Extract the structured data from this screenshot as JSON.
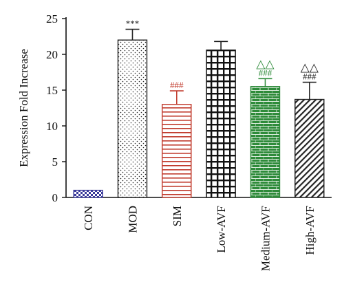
{
  "chart_data": {
    "type": "bar",
    "title": "",
    "xlabel": "",
    "ylabel": "Expression Fold Increase",
    "ylim": [
      0,
      25
    ],
    "yticks": [
      0,
      5,
      10,
      15,
      20,
      25
    ],
    "categories": [
      "CON",
      "MOD",
      "SIM",
      "Low-AVF",
      "Medium-AVF",
      "High-AVF"
    ],
    "values": [
      1.0,
      22.0,
      13.0,
      20.6,
      15.5,
      13.7
    ],
    "errors": [
      0.0,
      1.5,
      1.9,
      1.2,
      1.1,
      2.4
    ],
    "colors": [
      "#3a3a9a",
      "#222222",
      "#c0392b",
      "#111111",
      "#2e8b3a",
      "#222222"
    ],
    "patterns": [
      "checker-blue",
      "dots",
      "horizontal-lines",
      "grid",
      "bricks",
      "diagonal-lines"
    ],
    "annotations": [
      {
        "category": "MOD",
        "lines": [
          "***"
        ]
      },
      {
        "category": "SIM",
        "lines": [
          "###"
        ]
      },
      {
        "category": "Medium-AVF",
        "lines": [
          "△△",
          "###"
        ]
      },
      {
        "category": "High-AVF",
        "lines": [
          "△△",
          "###"
        ]
      }
    ],
    "grid": false,
    "legend": "none"
  }
}
